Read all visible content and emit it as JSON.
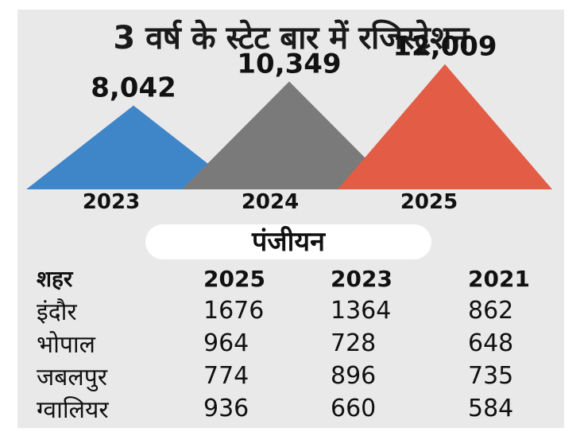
{
  "title": "3 वर्ष के स्टेट बार में रजिस्ट्रेशन",
  "chart_data": {
    "type": "area",
    "categories": [
      "2023",
      "2024",
      "2025"
    ],
    "values": [
      8042,
      10349,
      12009
    ],
    "value_labels": [
      "8,042",
      "10,349",
      "12,009"
    ],
    "colors": [
      "#3f86c9",
      "#7a7a7a",
      "#e35c46"
    ]
  },
  "table": {
    "caption": "पंजीयन",
    "headers": [
      "शहर",
      "2025",
      "2023",
      "2021"
    ],
    "rows": [
      [
        "इंदौर",
        "1676",
        "1364",
        "862"
      ],
      [
        "भोपाल",
        "964",
        "728",
        "648"
      ],
      [
        "जबलपुर",
        "774",
        "896",
        "735"
      ],
      [
        "ग्वालियर",
        "936",
        "660",
        "584"
      ]
    ]
  }
}
